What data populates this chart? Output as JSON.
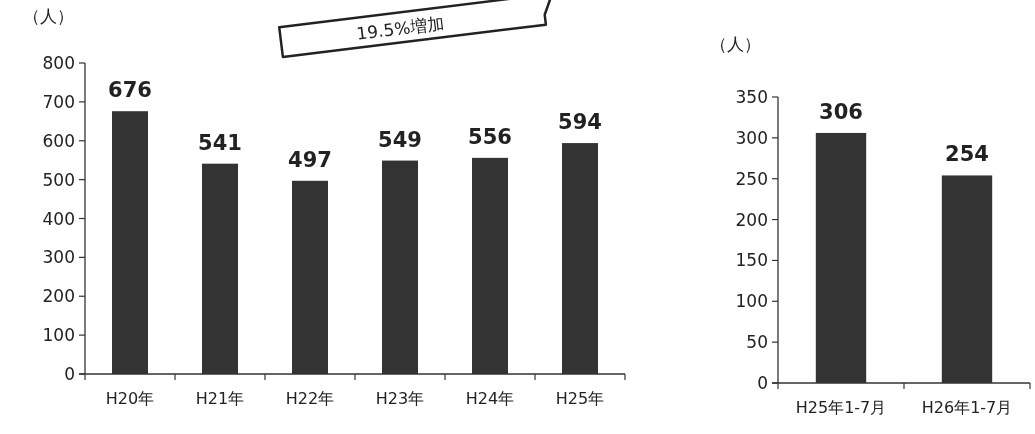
{
  "chart_data": [
    {
      "type": "bar",
      "ylabel": "（人）",
      "categories": [
        "H20年",
        "H21年",
        "H22年",
        "H23年",
        "H24年",
        "H25年"
      ],
      "values": [
        676,
        541,
        497,
        549,
        556,
        594
      ],
      "color": "#333333",
      "ylim": [
        0,
        800
      ],
      "yticks": [
        0,
        100,
        200,
        300,
        400,
        500,
        600,
        700,
        800
      ],
      "data_labels": true,
      "annotations": [
        "19.5%増加"
      ]
    },
    {
      "type": "bar",
      "ylabel": "（人）",
      "categories": [
        "H25年1-7月",
        "H26年1-7月"
      ],
      "values": [
        306,
        254
      ],
      "color": "#333333",
      "ylim": [
        0,
        350
      ],
      "yticks": [
        0,
        50,
        100,
        150,
        200,
        250,
        300,
        350
      ],
      "data_labels": true
    }
  ]
}
